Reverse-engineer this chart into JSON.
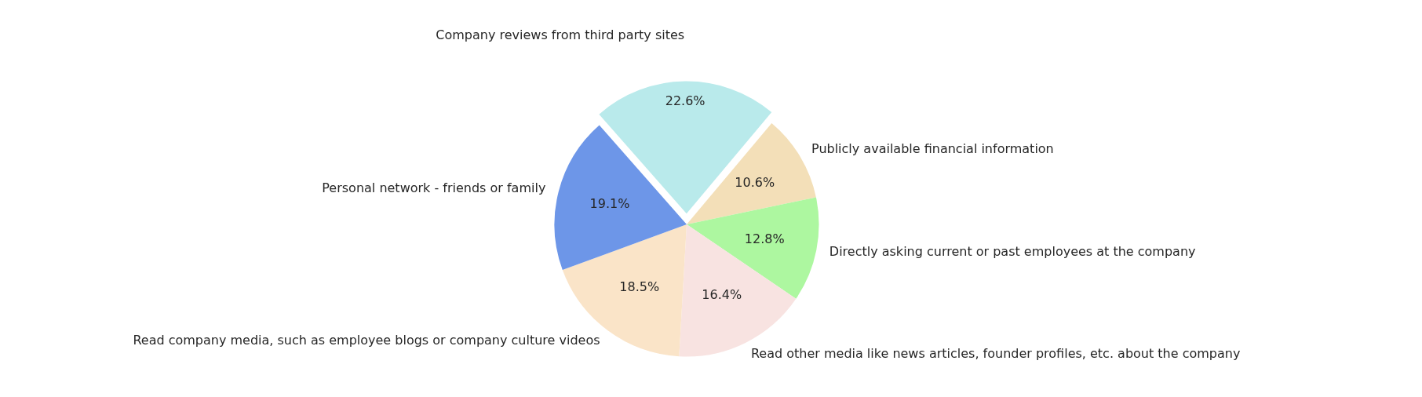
{
  "chart_data": {
    "type": "pie",
    "categories": [
      "Company reviews from third party sites",
      "Personal network - friends or family",
      "Read company media, such as employee blogs or company culture videos",
      "Read other media like news articles, founder profiles, etc. about the company",
      "Directly asking current or past employees at the company",
      "Publicly available financial information"
    ],
    "values": [
      22.6,
      19.1,
      18.5,
      16.4,
      12.8,
      10.6
    ],
    "value_labels": [
      "22.6%",
      "19.1%",
      "18.5%",
      "16.4%",
      "12.8%",
      "10.6%"
    ],
    "colors": [
      "#b9eaeb",
      "#6d96e8",
      "#fae4c8",
      "#f8e3e1",
      "#adf7a0",
      "#f3dfb8"
    ],
    "legend": false
  }
}
